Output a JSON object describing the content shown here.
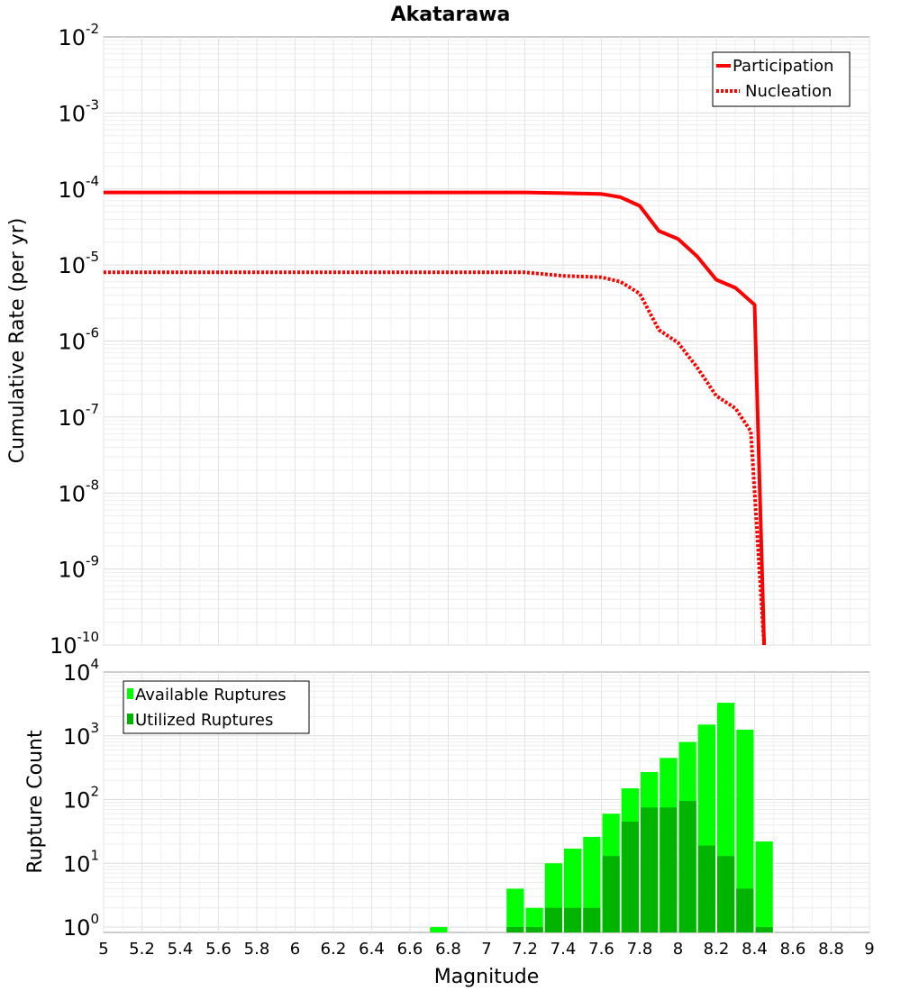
{
  "chart_data": [
    {
      "type": "line",
      "title": "Akatarawa",
      "xlabel": "Magnitude",
      "ylabel": "Cumulative Rate (per yr)",
      "yscale": "log",
      "xlim": [
        5,
        9
      ],
      "ylim_exp": [
        -10,
        -2
      ],
      "y_tick_exponents": [
        -10,
        -9,
        -8,
        -7,
        -6,
        -5,
        -4,
        -3,
        -2
      ],
      "legend_position": "top-right",
      "colors": {
        "line": "#ff0000"
      },
      "series": [
        {
          "name": "Participation",
          "style": "solid",
          "x": [
            5.0,
            7.0,
            7.2,
            7.4,
            7.6,
            7.7,
            7.8,
            7.9,
            8.0,
            8.1,
            8.2,
            8.3,
            8.4,
            8.45
          ],
          "values": [
            9e-05,
            9e-05,
            9e-05,
            8.8e-05,
            8.6e-05,
            7.8e-05,
            6e-05,
            2.8e-05,
            2.2e-05,
            1.3e-05,
            6.4e-06,
            5e-06,
            3e-06,
            1e-10
          ]
        },
        {
          "name": "Nucleation",
          "style": "dotted",
          "x": [
            5.0,
            7.0,
            7.2,
            7.4,
            7.6,
            7.7,
            7.8,
            7.9,
            8.0,
            8.1,
            8.2,
            8.3,
            8.38,
            8.45
          ],
          "values": [
            8e-06,
            8e-06,
            8e-06,
            7.2e-06,
            6.9e-06,
            6e-06,
            4.2e-06,
            1.4e-06,
            9.5e-07,
            4.5e-07,
            1.9e-07,
            1.3e-07,
            6.5e-08,
            1e-10
          ]
        }
      ]
    },
    {
      "type": "bar",
      "xlabel": "Magnitude",
      "ylabel": "Rupture Count",
      "yscale": "log",
      "xlim": [
        5,
        9
      ],
      "ylim_exp": [
        0,
        4
      ],
      "y_tick_exponents": [
        0,
        1,
        2,
        3,
        4
      ],
      "x_ticks": [
        "5",
        "5.2",
        "5.4",
        "5.6",
        "5.8",
        "6",
        "6.2",
        "6.4",
        "6.6",
        "6.8",
        "7",
        "7.2",
        "7.4",
        "7.6",
        "7.8",
        "8",
        "8.2",
        "8.4",
        "8.6",
        "8.8",
        "9"
      ],
      "legend_position": "top-left",
      "bin_width": 0.1,
      "bin_centers": [
        6.75,
        7.15,
        7.25,
        7.35,
        7.45,
        7.55,
        7.65,
        7.75,
        7.85,
        7.95,
        8.05,
        8.15,
        8.25,
        8.35,
        8.45
      ],
      "series": [
        {
          "name": "Available Ruptures",
          "color": "#00ff00",
          "values": [
            1,
            4,
            2,
            10,
            17,
            26,
            60,
            150,
            270,
            450,
            800,
            1500,
            3300,
            1250,
            22
          ]
        },
        {
          "name": "Utilized Ruptures",
          "color": "#00b400",
          "values": [
            0,
            1,
            1,
            2,
            2,
            2,
            13,
            45,
            75,
            75,
            95,
            19,
            13,
            4,
            1
          ]
        }
      ]
    }
  ]
}
